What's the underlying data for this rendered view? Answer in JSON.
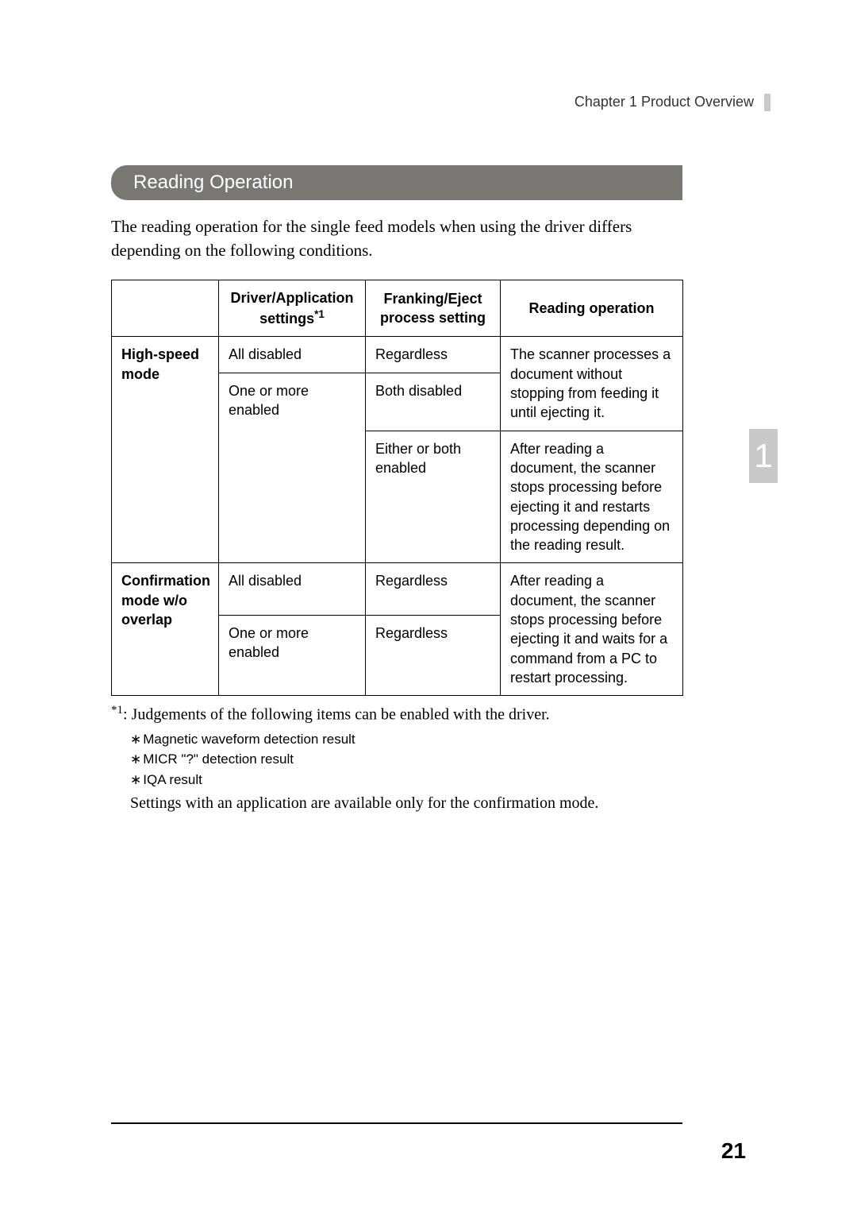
{
  "chapterHeader": "Chapter 1   Product Overview",
  "sideTab": "1",
  "sectionTitle": "Reading Operation",
  "introText": "The reading operation for the single feed models when using the driver differs depending on the following conditions.",
  "table": {
    "header": {
      "mode": "",
      "driver": "Driver/Application settings",
      "driverSup": "*1",
      "frank": "Franking/Eject process setting",
      "reading": "Reading operation"
    },
    "rows": {
      "hsMode": "High-speed mode",
      "hsR1Driver": "All disabled",
      "hsR1Frank": "Regardless",
      "hsR2Driver": "One or more enabled",
      "hsR2Frank": "Both disabled",
      "hsReadingA": "The scanner processes a document without stopping from feeding it until ejecting it.",
      "hsR3Frank": "Either or both enabled",
      "hsReadingB": "After reading a document, the scanner stops processing before ejecting it and restarts processing depending on the reading result.",
      "cfMode": "Confirmation mode w/o overlap",
      "cfR1Driver": "All disabled",
      "cfR1Frank": "Regardless",
      "cfR2Driver": "One or more enabled",
      "cfR2Frank": "Regardless",
      "cfReading": "After reading a document, the scanner stops processing before ejecting it and waits for a command from a PC to restart processing."
    }
  },
  "footnote": {
    "lead": ": Judgements of the following items can be enabled with the driver.",
    "leadSup": "*1",
    "bullets": [
      "Magnetic waveform detection result",
      "MICR \"?\" detection result",
      "IQA result"
    ],
    "trailer": "Settings with an application are available only for the confirmation mode."
  },
  "pageNumber": "21"
}
